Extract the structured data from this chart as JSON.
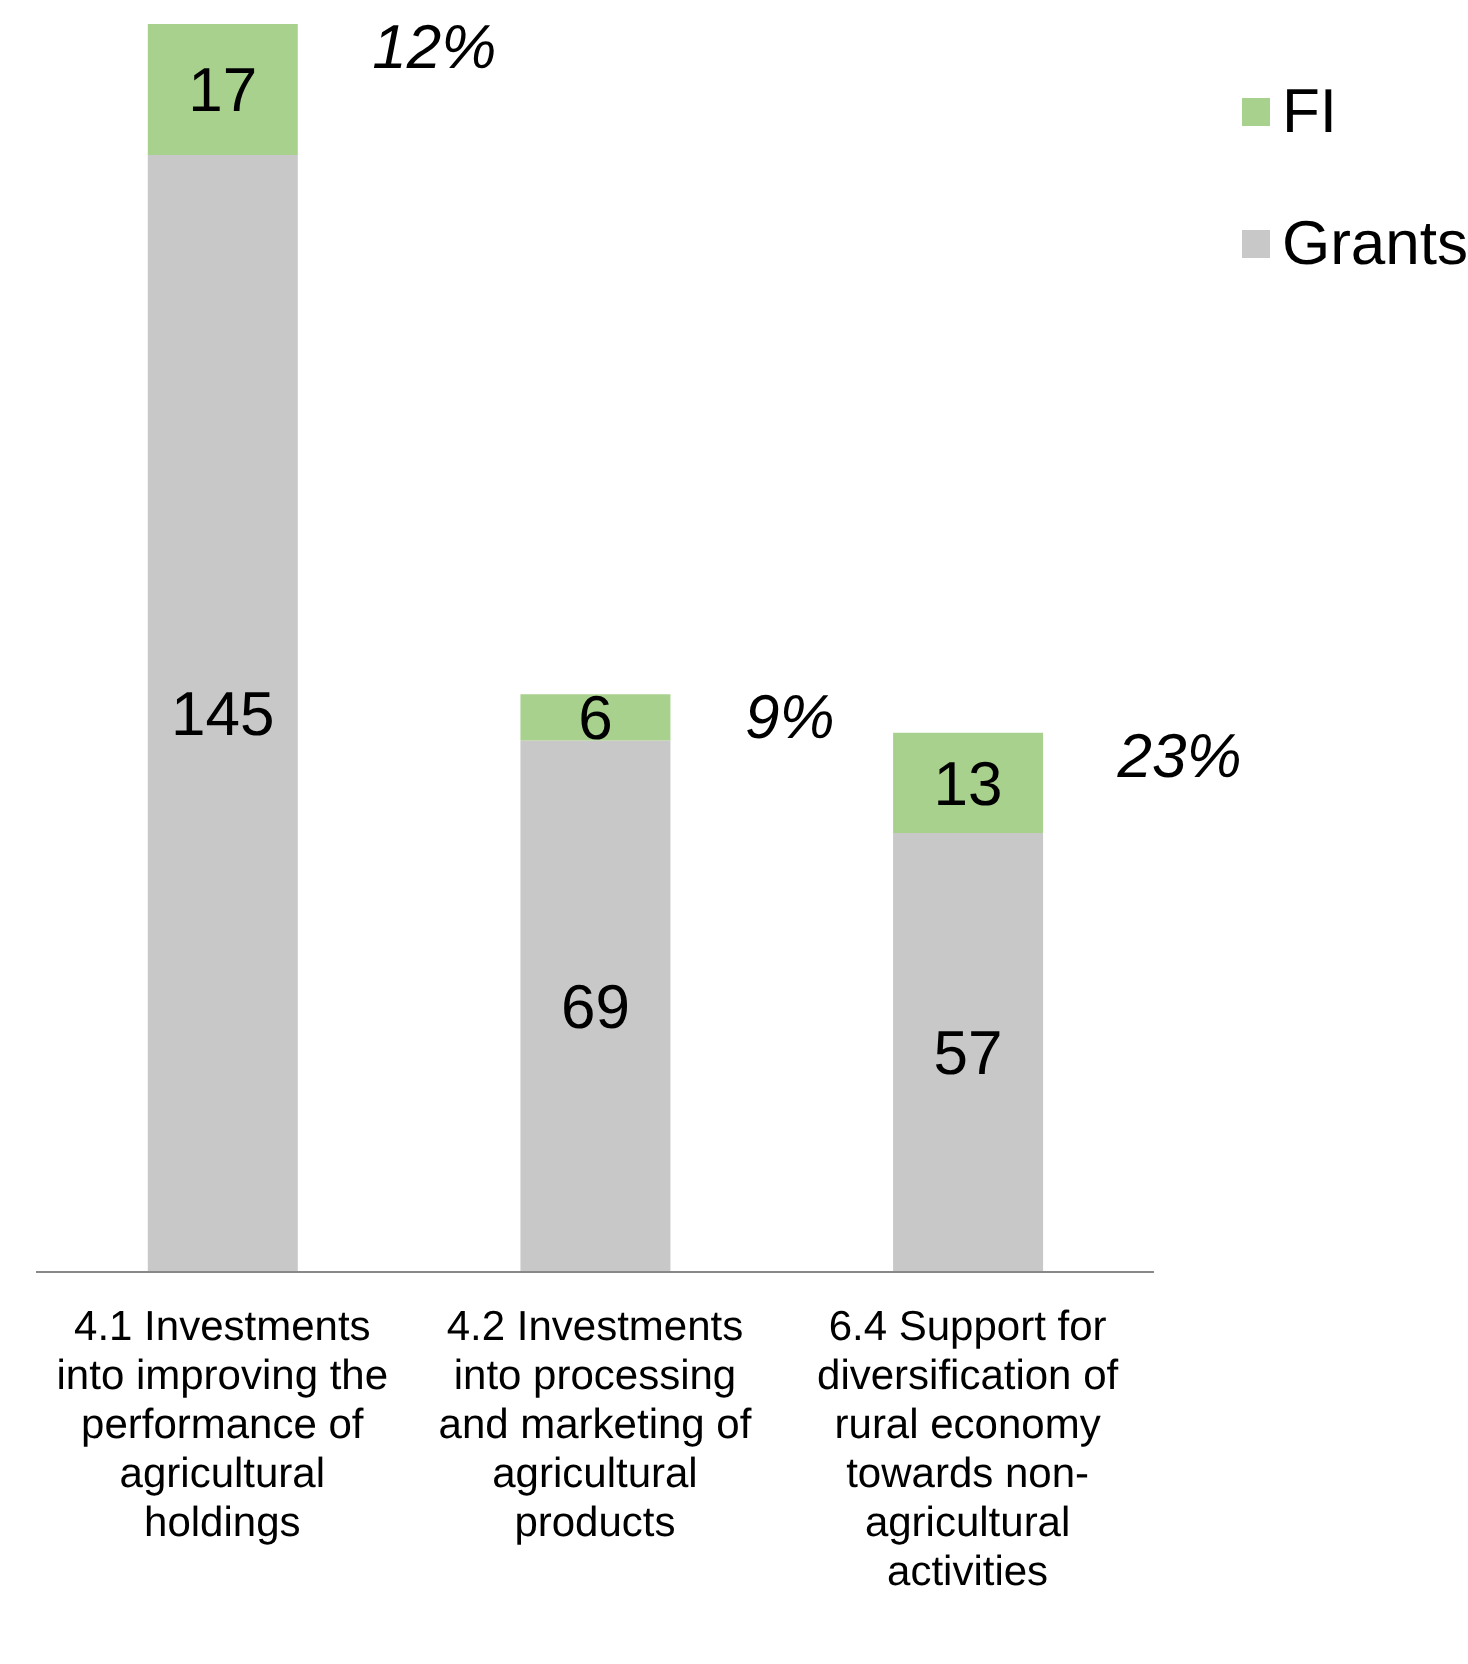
{
  "chart_data": {
    "type": "bar",
    "stacked": true,
    "categories": [
      "4.1 Investments into improving the performance of agricultural holdings",
      "4.2 Investments into processing and marketing of agricultural products",
      "6.4 Support for diversification of rural economy towards non-agricultural activities"
    ],
    "series": [
      {
        "name": "Grants",
        "color": "#c8c8c8",
        "values": [
          145,
          69,
          57
        ]
      },
      {
        "name": "FI",
        "color": "#a9d18e",
        "values": [
          17,
          6,
          13
        ]
      }
    ],
    "ylim": [
      0,
      162
    ],
    "data_labels": true,
    "legend": "top right",
    "grid": false,
    "tick_labels": "x",
    "annotations": [
      {
        "text": "12%",
        "x": "4.1 Investments into improving the performance of agricultural holdings",
        "y": 162
      },
      {
        "text": "9%",
        "x": "4.2 Investments into processing and marketing of agricultural products",
        "y": 75
      },
      {
        "text": "23%",
        "x": "6.4 Support for diversification of rural economy towards non-agricultural activities",
        "y": 70
      }
    ]
  }
}
